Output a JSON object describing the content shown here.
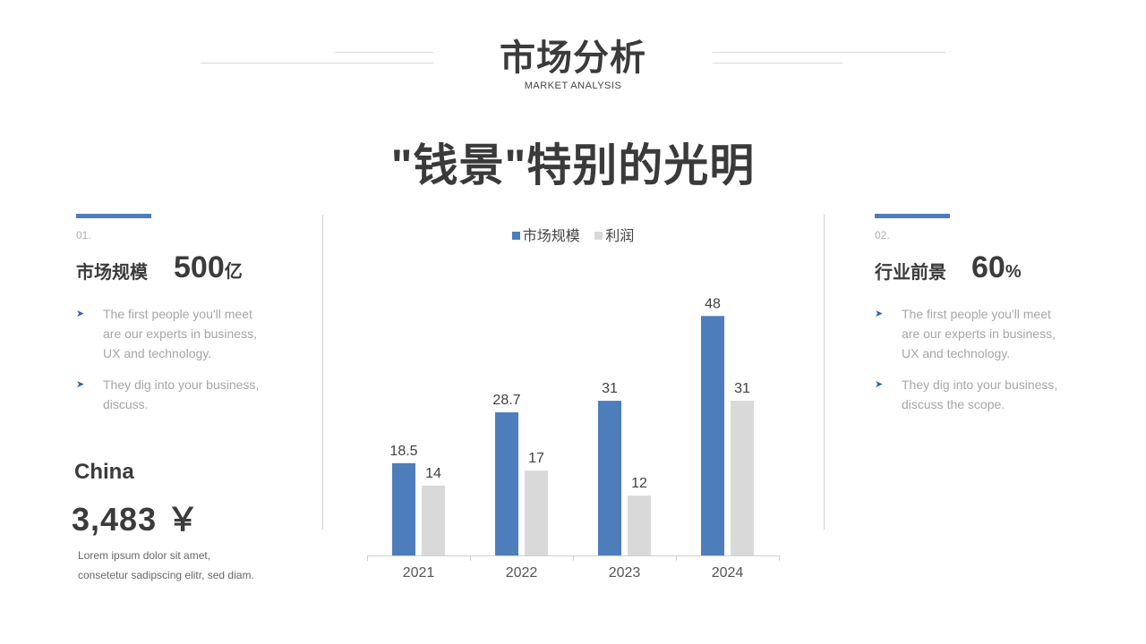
{
  "header": {
    "title": "市场分析",
    "subtitle": "MARKET ANALYSIS"
  },
  "headline": "\"钱景\"特别的光明",
  "left_panel": {
    "number": "01.",
    "label": "市场规模",
    "value": "500",
    "unit": "亿",
    "bullets": [
      "The first people you'll meet are our experts in business, UX  and technology.",
      "They dig into your business, discuss."
    ]
  },
  "country_block": {
    "country": "China",
    "amount": "3,483 ￥",
    "text_line1": "Lorem ipsum dolor sit amet,",
    "text_line2": "consetetur sadipscing elitr, sed diam."
  },
  "right_panel": {
    "number": "02.",
    "label": "行业前景",
    "value": "60",
    "unit": "%",
    "bullets": [
      "The first people you'll meet are our experts in business, UX  and technology.",
      "They dig into your business, discuss the scope."
    ]
  },
  "colors": {
    "accent": "#4e7dbb",
    "series_profit": "#d9d9d9",
    "bullet_arrow": "#2e5fb5"
  },
  "chart_data": {
    "type": "bar",
    "categories": [
      "2021",
      "2022",
      "2023",
      "2024"
    ],
    "series": [
      {
        "name": "市场规模",
        "values": [
          18.5,
          28.7,
          31,
          48
        ],
        "color": "#4e7dbb"
      },
      {
        "name": "利润",
        "values": [
          14,
          17,
          12,
          31
        ],
        "color": "#d9d9d9"
      }
    ],
    "value_labels": [
      [
        "18.5",
        "28.7",
        "31",
        "48"
      ],
      [
        "14",
        "17",
        "12",
        "31"
      ]
    ],
    "ylim": [
      0,
      52
    ],
    "legend": "top",
    "grid": false
  }
}
